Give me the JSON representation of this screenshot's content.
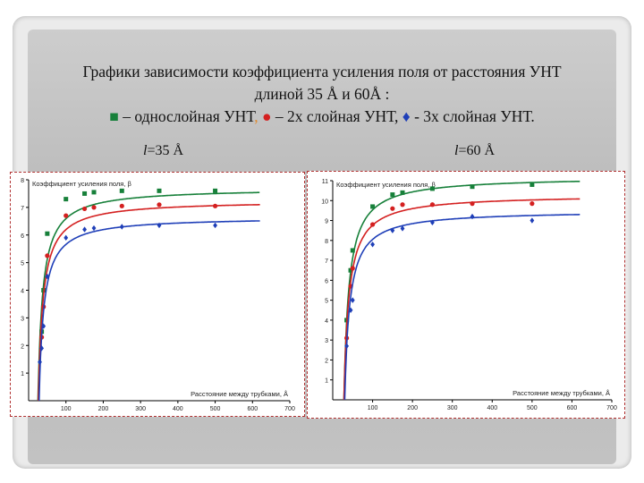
{
  "title": {
    "line1": "Графики зависимости коэффициента усиления поля  от расстояния УНТ",
    "line2": "длиной 35 Å и 60Å :",
    "legend_single_symbol": "■",
    "legend_single_text": " – однослойная УНТ",
    "legend_comma": ",",
    "legend_double_symbol": "●",
    "legend_double_text": " – 2х слойная УНТ, ",
    "legend_triple_symbol": "♦",
    "legend_triple_text": " - 3х слойная УНТ."
  },
  "subtitles": [
    {
      "var": "l",
      "text": "=35 Å"
    },
    {
      "var": "l",
      "text": "=60 Å"
    }
  ],
  "colors": {
    "green": "#17803a",
    "red": "#d42020",
    "blue": "#1f3fb8"
  },
  "chart_data": [
    {
      "type": "scatter",
      "ylabel": "Коэффициент усиления поля, β",
      "xlabel": "Расстояние между трубками, Å",
      "xlim": [
        0,
        700
      ],
      "ylim": [
        0,
        8
      ],
      "xticks": [
        100,
        200,
        300,
        400,
        500,
        600,
        700
      ],
      "yticks": [
        1,
        2,
        3,
        4,
        5,
        6,
        7,
        8
      ],
      "series": [
        {
          "name": "однослойная УНТ",
          "color": "green",
          "marker": "square",
          "x": [
            35,
            40,
            50,
            100,
            150,
            175,
            250,
            350,
            500
          ],
          "y": [
            2.5,
            4.0,
            6.05,
            7.3,
            7.5,
            7.55,
            7.6,
            7.6,
            7.6
          ],
          "fit": {
            "plateau": 7.7,
            "x0": 25,
            "k": 45
          }
        },
        {
          "name": "2х слойная УНТ",
          "color": "red",
          "marker": "circle",
          "x": [
            35,
            40,
            50,
            100,
            150,
            175,
            250,
            350,
            500
          ],
          "y": [
            2.3,
            3.4,
            5.25,
            6.7,
            6.95,
            7.0,
            7.05,
            7.1,
            7.05
          ],
          "fit": {
            "plateau": 7.25,
            "x0": 26,
            "k": 45
          }
        },
        {
          "name": "3х слойная УНТ",
          "color": "blue",
          "marker": "diamond",
          "x": [
            30,
            35,
            40,
            50,
            100,
            150,
            175,
            250,
            350,
            500
          ],
          "y": [
            1.4,
            1.9,
            2.7,
            4.5,
            5.9,
            6.2,
            6.25,
            6.3,
            6.35,
            6.35
          ],
          "fit": {
            "plateau": 6.65,
            "x0": 28,
            "k": 45
          }
        }
      ]
    },
    {
      "type": "scatter",
      "ylabel": "Коэффициент усиления поля, β",
      "xlabel": "Расстояние между трубками, Å",
      "xlim": [
        0,
        700
      ],
      "ylim": [
        0,
        11
      ],
      "xticks": [
        100,
        200,
        300,
        400,
        500,
        600,
        700
      ],
      "yticks": [
        1,
        2,
        3,
        4,
        5,
        6,
        7,
        8,
        9,
        10,
        11
      ],
      "series": [
        {
          "name": "однослойная УНТ",
          "color": "green",
          "marker": "square",
          "x": [
            35,
            45,
            50,
            100,
            150,
            175,
            250,
            350,
            500
          ],
          "y": [
            4.0,
            6.5,
            7.5,
            9.7,
            10.3,
            10.4,
            10.6,
            10.7,
            10.8
          ],
          "fit": {
            "plateau": 11.2,
            "x0": 28,
            "k": 45
          }
        },
        {
          "name": "2х слойная УНТ",
          "color": "red",
          "marker": "circle",
          "x": [
            35,
            45,
            50,
            100,
            150,
            175,
            250,
            350,
            500
          ],
          "y": [
            3.1,
            5.7,
            6.6,
            8.8,
            9.6,
            9.8,
            9.8,
            9.85,
            9.85
          ],
          "fit": {
            "plateau": 10.3,
            "x0": 28,
            "k": 45
          }
        },
        {
          "name": "3х слойная УНТ",
          "color": "blue",
          "marker": "diamond",
          "x": [
            35,
            45,
            50,
            100,
            150,
            175,
            250,
            350,
            500
          ],
          "y": [
            2.7,
            4.5,
            5.0,
            7.8,
            8.5,
            8.6,
            8.9,
            9.2,
            9.0
          ],
          "fit": {
            "plateau": 9.5,
            "x0": 30,
            "k": 45
          }
        }
      ]
    }
  ]
}
